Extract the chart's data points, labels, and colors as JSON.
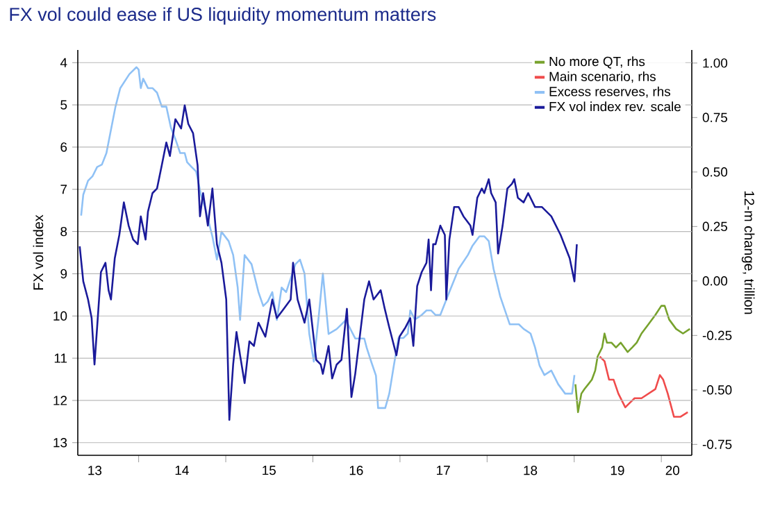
{
  "chart_data": {
    "type": "line",
    "title": "FX vol could ease if US liquidity momentum matters",
    "ylabel": "FX vol index",
    "y2label": "12-m change, trillion",
    "xlim": [
      "2013-04-21",
      "2020-05-08"
    ],
    "ylim": [
      13.3,
      3.7
    ],
    "y2lim": [
      -0.8,
      1.06
    ],
    "xticks": [
      {
        "value": "2013-07-01",
        "label": "13"
      },
      {
        "value": "2014-07-01",
        "label": "14"
      },
      {
        "value": "2015-07-01",
        "label": "15"
      },
      {
        "value": "2016-07-01",
        "label": "16"
      },
      {
        "value": "2017-07-01",
        "label": "17"
      },
      {
        "value": "2018-07-01",
        "label": "18"
      },
      {
        "value": "2019-07-01",
        "label": "19"
      },
      {
        "value": "2020-02-17",
        "label": "20"
      },
      {
        "value": "2014-01-01",
        "label": null
      },
      {
        "value": "2015-01-01",
        "label": null
      },
      {
        "value": "2016-01-01",
        "label": null
      },
      {
        "value": "2017-01-01",
        "label": null
      },
      {
        "value": "2018-01-01",
        "label": null
      },
      {
        "value": "2019-01-01",
        "label": null
      },
      {
        "value": "2020-01-01",
        "label": null
      }
    ],
    "yticks": [
      4,
      5,
      6,
      7,
      8,
      9,
      10,
      11,
      12,
      13
    ],
    "y2ticks": [
      {
        "value": 1.0,
        "label": "1.00"
      },
      {
        "value": 0.75,
        "label": "0.75"
      },
      {
        "value": 0.5,
        "label": "0.50"
      },
      {
        "value": 0.25,
        "label": "0.25"
      },
      {
        "value": 0.0,
        "label": "0.00"
      },
      {
        "value": -0.25,
        "label": "-0.25"
      },
      {
        "value": -0.5,
        "label": "-0.50"
      },
      {
        "value": -0.75,
        "label": "-0.75"
      }
    ],
    "grid": "y",
    "legend": "top right",
    "series": [
      {
        "name": "No more QT, rhs",
        "color": "#77a22d",
        "axis": "y2",
        "x": [
          "2019-01-06",
          "2019-01-17",
          "2019-01-31",
          "2019-02-13",
          "2019-03-01",
          "2019-03-16",
          "2019-03-30",
          "2019-04-09",
          "2019-04-28",
          "2019-05-08",
          "2019-05-18",
          "2019-06-06",
          "2019-06-25",
          "2019-07-15",
          "2019-08-13",
          "2019-09-01",
          "2019-09-20",
          "2019-10-10",
          "2019-11-08",
          "2019-12-07",
          "2020-01-01",
          "2020-01-15",
          "2020-02-03",
          "2020-03-03",
          "2020-04-01",
          "2020-04-30"
        ],
        "values": [
          -0.474,
          -0.602,
          -0.517,
          -0.496,
          -0.474,
          -0.453,
          -0.411,
          -0.347,
          -0.305,
          -0.241,
          -0.283,
          -0.283,
          -0.305,
          -0.283,
          -0.326,
          -0.305,
          -0.283,
          -0.241,
          -0.199,
          -0.156,
          -0.114,
          -0.114,
          -0.177,
          -0.22,
          -0.241,
          -0.22
        ]
      },
      {
        "name": "Main scenario, rhs",
        "color": "#f04b4b",
        "axis": "y2",
        "x": [
          "2019-04-18",
          "2019-05-08",
          "2019-05-27",
          "2019-06-15",
          "2019-07-05",
          "2019-08-03",
          "2019-08-22",
          "2019-09-11",
          "2019-10-10",
          "2019-11-08",
          "2019-12-07",
          "2019-12-26",
          "2020-01-09",
          "2020-01-28",
          "2020-02-23",
          "2020-03-22",
          "2020-04-21"
        ],
        "values": [
          -0.347,
          -0.368,
          -0.453,
          -0.453,
          -0.517,
          -0.58,
          -0.559,
          -0.538,
          -0.538,
          -0.517,
          -0.496,
          -0.432,
          -0.453,
          -0.517,
          -0.623,
          -0.623,
          -0.602
        ]
      },
      {
        "name": "Excess reserves, rhs",
        "color": "#8fc1f5",
        "axis": "y2",
        "x": [
          "2013-05-05",
          "2013-05-14",
          "2013-06-03",
          "2013-06-22",
          "2013-07-11",
          "2013-07-31",
          "2013-08-19",
          "2013-09-07",
          "2013-09-26",
          "2013-10-16",
          "2013-11-23",
          "2013-12-23",
          "2014-01-01",
          "2014-01-10",
          "2014-01-20",
          "2014-02-09",
          "2014-02-28",
          "2014-03-19",
          "2014-04-08",
          "2014-04-27",
          "2014-05-16",
          "2014-06-04",
          "2014-06-24",
          "2014-07-13",
          "2014-07-23",
          "2014-08-11",
          "2014-08-30",
          "2014-09-19",
          "2014-10-08",
          "2014-10-27",
          "2014-11-06",
          "2014-11-25",
          "2014-12-14",
          "2015-01-13",
          "2015-02-01",
          "2015-02-20",
          "2015-03-02",
          "2015-03-21",
          "2015-04-19",
          "2015-05-18",
          "2015-06-07",
          "2015-06-26",
          "2015-07-15",
          "2015-08-03",
          "2015-08-23",
          "2015-09-11",
          "2015-10-20",
          "2015-11-08",
          "2015-11-27",
          "2015-12-17",
          "2016-01-05",
          "2016-01-24",
          "2016-02-12",
          "2016-03-07",
          "2016-04-10",
          "2016-05-19",
          "2016-06-07",
          "2016-06-27",
          "2016-07-16",
          "2016-08-04",
          "2016-08-14",
          "2016-09-02",
          "2016-09-22",
          "2016-10-01",
          "2016-10-31",
          "2016-11-17",
          "2016-12-06",
          "2016-12-26",
          "2017-01-15",
          "2017-02-03",
          "2017-02-13",
          "2017-03-04",
          "2017-04-02",
          "2017-04-22",
          "2017-05-11",
          "2017-05-30",
          "2017-06-19",
          "2017-07-27",
          "2017-09-04",
          "2017-10-13",
          "2017-11-01",
          "2017-11-30",
          "2017-12-20",
          "2018-01-08",
          "2018-01-28",
          "2018-02-25",
          "2018-04-06",
          "2018-05-14",
          "2018-06-03",
          "2018-07-02",
          "2018-07-21",
          "2018-08-09",
          "2018-08-29",
          "2018-09-27",
          "2018-10-26",
          "2018-11-24",
          "2018-12-23",
          "2019-01-02"
        ],
        "values": [
          0.3,
          0.396,
          0.46,
          0.481,
          0.523,
          0.534,
          0.587,
          0.694,
          0.8,
          0.885,
          0.949,
          0.981,
          0.97,
          0.885,
          0.928,
          0.885,
          0.885,
          0.864,
          0.8,
          0.8,
          0.704,
          0.651,
          0.587,
          0.587,
          0.545,
          0.523,
          0.502,
          0.396,
          0.332,
          0.247,
          0.204,
          0.098,
          0.226,
          0.183,
          0.119,
          -0.03,
          -0.179,
          0.119,
          0.077,
          -0.051,
          -0.115,
          -0.094,
          -0.051,
          -0.179,
          -0.03,
          -0.051,
          0.077,
          0.098,
          0.034,
          -0.243,
          -0.37,
          -0.179,
          0.034,
          -0.243,
          -0.221,
          -0.179,
          -0.221,
          -0.264,
          -0.264,
          -0.264,
          -0.306,
          -0.37,
          -0.434,
          -0.583,
          -0.583,
          -0.517,
          -0.389,
          -0.262,
          -0.262,
          -0.241,
          -0.135,
          -0.177,
          -0.156,
          -0.135,
          -0.135,
          -0.156,
          -0.156,
          -0.05,
          0.056,
          0.12,
          0.162,
          0.205,
          0.205,
          0.183,
          0.056,
          -0.071,
          -0.199,
          -0.199,
          -0.22,
          -0.241,
          -0.305,
          -0.389,
          -0.432,
          -0.411,
          -0.474,
          -0.517,
          -0.517,
          -0.432
        ]
      },
      {
        "name": "FX vol index rev. scale",
        "color": "#1a1a9a",
        "x": [
          "2013-04-29",
          "2013-05-14",
          "2013-06-03",
          "2013-06-18",
          "2013-06-30",
          "2013-07-11",
          "2013-07-27",
          "2013-08-15",
          "2013-08-28",
          "2013-09-07",
          "2013-09-23",
          "2013-10-12",
          "2013-10-31",
          "2013-11-20",
          "2013-12-09",
          "2013-12-28",
          "2014-01-10",
          "2014-01-30",
          "2014-02-09",
          "2014-02-28",
          "2014-03-19",
          "2014-04-08",
          "2014-04-27",
          "2014-05-12",
          "2014-06-04",
          "2014-06-28",
          "2014-07-13",
          "2014-07-28",
          "2014-08-17",
          "2014-09-05",
          "2014-09-15",
          "2014-09-28",
          "2014-10-18",
          "2014-11-06",
          "2014-11-25",
          "2014-12-14",
          "2015-01-03",
          "2015-01-16",
          "2015-02-01",
          "2015-02-15",
          "2015-03-02",
          "2015-03-21",
          "2015-04-10",
          "2015-04-29",
          "2015-05-18",
          "2015-06-16",
          "2015-07-15",
          "2015-08-03",
          "2015-09-01",
          "2015-09-30",
          "2015-10-10",
          "2015-10-29",
          "2015-11-27",
          "2015-12-17",
          "2016-01-15",
          "2016-02-03",
          "2016-02-12",
          "2016-03-07",
          "2016-03-22",
          "2016-04-10",
          "2016-04-30",
          "2016-05-23",
          "2016-06-11",
          "2016-06-27",
          "2016-07-16",
          "2016-08-04",
          "2016-08-24",
          "2016-09-12",
          "2016-10-12",
          "2016-10-29",
          "2016-11-17",
          "2016-12-17",
          "2016-12-30",
          "2017-01-24",
          "2017-02-13",
          "2017-02-26",
          "2017-03-14",
          "2017-04-02",
          "2017-04-22",
          "2017-05-01",
          "2017-05-11",
          "2017-05-20",
          "2017-05-30",
          "2017-06-19",
          "2017-07-08",
          "2017-07-14",
          "2017-07-27",
          "2017-08-16",
          "2017-09-04",
          "2017-09-24",
          "2017-10-23",
          "2017-11-01",
          "2017-11-21",
          "2017-12-10",
          "2017-12-20",
          "2018-01-08",
          "2018-01-18",
          "2018-02-06",
          "2018-02-16",
          "2018-03-07",
          "2018-03-27",
          "2018-04-15",
          "2018-04-25",
          "2018-05-10",
          "2018-06-03",
          "2018-06-22",
          "2018-07-21",
          "2018-08-19",
          "2018-09-27",
          "2018-11-05",
          "2018-12-13",
          "2019-01-02",
          "2019-01-12"
        ],
        "values": [
          8.35,
          9.18,
          9.61,
          10.05,
          11.15,
          10.27,
          8.96,
          8.74,
          9.39,
          9.61,
          8.63,
          8.08,
          7.31,
          7.86,
          8.19,
          8.3,
          7.64,
          8.19,
          7.53,
          7.09,
          6.98,
          6.43,
          5.89,
          6.21,
          5.34,
          5.56,
          5.01,
          5.45,
          5.67,
          6.43,
          7.64,
          7.09,
          7.86,
          6.98,
          8.3,
          8.74,
          9.61,
          12.46,
          11.15,
          10.38,
          10.93,
          11.59,
          10.6,
          10.71,
          10.16,
          10.49,
          9.61,
          10.05,
          9.83,
          9.61,
          8.74,
          9.61,
          10.16,
          9.61,
          11.04,
          11.15,
          11.37,
          10.71,
          11.48,
          11.15,
          11.04,
          9.83,
          11.92,
          11.37,
          10.49,
          9.61,
          9.18,
          9.61,
          9.39,
          9.83,
          10.27,
          10.93,
          10.49,
          10.27,
          10.05,
          10.71,
          9.29,
          8.96,
          8.74,
          8.19,
          9.39,
          8.3,
          8.3,
          7.86,
          8.08,
          9.61,
          8.19,
          7.42,
          7.42,
          7.64,
          7.86,
          8.08,
          7.2,
          6.98,
          7.09,
          6.76,
          7.09,
          7.31,
          8.52,
          7.86,
          6.98,
          6.87,
          6.76,
          7.2,
          7.31,
          7.09,
          7.42,
          7.42,
          7.64,
          8.08,
          8.63,
          9.18,
          8.3
        ]
      }
    ]
  }
}
